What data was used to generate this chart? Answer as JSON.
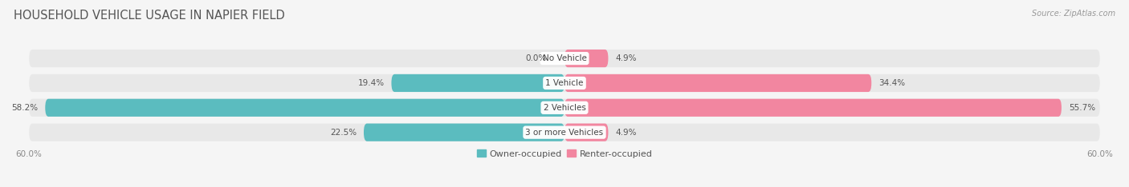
{
  "title": "HOUSEHOLD VEHICLE USAGE IN NAPIER FIELD",
  "source": "Source: ZipAtlas.com",
  "categories": [
    "No Vehicle",
    "1 Vehicle",
    "2 Vehicles",
    "3 or more Vehicles"
  ],
  "owner_values": [
    0.0,
    19.4,
    58.2,
    22.5
  ],
  "renter_values": [
    4.9,
    34.4,
    55.7,
    4.9
  ],
  "owner_color": "#5bbcbf",
  "renter_color": "#f286a0",
  "bar_bg_color": "#e8e8e8",
  "bar_height": 0.72,
  "x_max": 60.0,
  "figsize": [
    14.06,
    2.34
  ],
  "dpi": 100,
  "title_fontsize": 10.5,
  "label_fontsize": 7.5,
  "tick_fontsize": 7.5,
  "legend_fontsize": 8,
  "axis_label_left": "60.0%",
  "axis_label_right": "60.0%",
  "background_color": "#f5f5f5"
}
